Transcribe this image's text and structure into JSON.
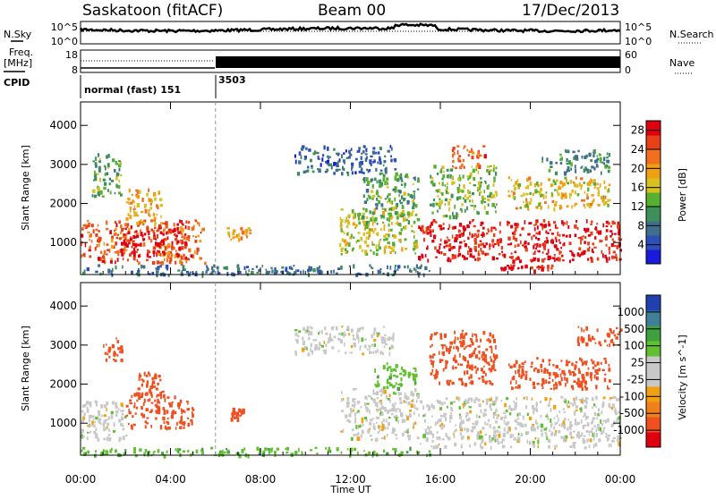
{
  "header": {
    "station": "Saskatoon (fitACF)",
    "beam": "Beam 00",
    "date": "17/Dec/2013"
  },
  "strip": {
    "nsky_label": "N.Sky",
    "nsearch_label": "N.Search",
    "nsky_ticks": [
      "10^5",
      "10^0"
    ],
    "nsky_ticks_right": [
      "10^5",
      "10^0"
    ],
    "freq_label_1": "Freq.",
    "freq_label_2": "[MHz]",
    "freq_ticks": [
      "18",
      "8"
    ],
    "nave_ticks": [
      "60",
      "0"
    ],
    "nave_label": "Nave",
    "cpid_label": "CPID",
    "cpid_segments": [
      {
        "label": "normal (fast) 151",
        "start_hour": 0
      },
      {
        "label": "3503",
        "start_hour": 6
      }
    ]
  },
  "colors": {
    "power_scale": [
      "#1a1adc",
      "#2d4fb8",
      "#3f6f8a",
      "#3f8f5a",
      "#58b030",
      "#d8c020",
      "#f0a010",
      "#f07020",
      "#e84018",
      "#e00010"
    ],
    "velocity_scale": [
      "#e00010",
      "#f05020",
      "#f08018",
      "#f0a010",
      "#c8c8c8",
      "#c8c8c8",
      "#60c030",
      "#40a040",
      "#3f7f9a",
      "#2040b0"
    ]
  },
  "chart_data": [
    {
      "type": "heatmap",
      "title": "Power",
      "xlabel": "",
      "ylabel": "Slant Range [km]",
      "x_ticks": [
        "00:00",
        "04:00",
        "08:00",
        "12:00",
        "16:00",
        "20:00",
        "00:00"
      ],
      "xlim_hours": [
        0,
        24
      ],
      "y_ticks": [
        1000,
        2000,
        3000,
        4000
      ],
      "ylim": [
        180,
        4600
      ],
      "colorbar_label": "Power [dB]",
      "colorbar_ticks": [
        4,
        8,
        12,
        16,
        20,
        24,
        28
      ],
      "colorbar_range": [
        0,
        30
      ],
      "regions": [
        {
          "t0": 0.0,
          "t1": 5.5,
          "r0": 500,
          "r1": 1600,
          "value": 24
        },
        {
          "t0": 1.8,
          "t1": 4.5,
          "r0": 700,
          "r1": 1400,
          "value": 28
        },
        {
          "t0": 2.0,
          "t1": 3.6,
          "r0": 1500,
          "r1": 2400,
          "value": 20
        },
        {
          "t0": 0.5,
          "t1": 1.8,
          "r0": 2200,
          "r1": 3300,
          "value": 12
        },
        {
          "t0": 0.0,
          "t1": 15.5,
          "r0": 200,
          "r1": 450,
          "value": 8
        },
        {
          "t0": 6.5,
          "t1": 7.5,
          "r0": 1100,
          "r1": 1400,
          "value": 20
        },
        {
          "t0": 9.5,
          "t1": 14.0,
          "r0": 2800,
          "r1": 3500,
          "value": 6
        },
        {
          "t0": 11.5,
          "t1": 15.0,
          "r0": 700,
          "r1": 1900,
          "value": 16
        },
        {
          "t0": 12.5,
          "t1": 15.0,
          "r0": 1500,
          "r1": 2800,
          "value": 12
        },
        {
          "t0": 15.0,
          "t1": 24.0,
          "r0": 550,
          "r1": 1600,
          "value": 28
        },
        {
          "t0": 15.5,
          "t1": 18.5,
          "r0": 1700,
          "r1": 3000,
          "value": 14
        },
        {
          "t0": 16.5,
          "t1": 18.0,
          "r0": 2900,
          "r1": 3500,
          "value": 24
        },
        {
          "t0": 19.0,
          "t1": 23.5,
          "r0": 1900,
          "r1": 2700,
          "value": 18
        },
        {
          "t0": 20.5,
          "t1": 23.5,
          "r0": 2800,
          "r1": 3400,
          "value": 10
        },
        {
          "t0": 18.5,
          "t1": 21.0,
          "r0": 300,
          "r1": 450,
          "value": 28
        }
      ]
    },
    {
      "type": "heatmap",
      "title": "Velocity",
      "xlabel": "Time UT",
      "ylabel": "Slant Range [km]",
      "x_ticks": [
        "00:00",
        "04:00",
        "08:00",
        "12:00",
        "16:00",
        "20:00",
        "00:00"
      ],
      "xlim_hours": [
        0,
        24
      ],
      "y_ticks": [
        1000,
        2000,
        3000,
        4000
      ],
      "ylim": [
        180,
        4600
      ],
      "colorbar_label": "Velocity [m s^-1]",
      "colorbar_ticks": [
        1000,
        500,
        100,
        25,
        -25,
        -100,
        -500,
        -1000
      ],
      "regions": [
        {
          "t0": 0.0,
          "t1": 2.0,
          "r0": 600,
          "r1": 1600,
          "value": 0
        },
        {
          "t0": 2.0,
          "t1": 5.0,
          "r0": 900,
          "r1": 1800,
          "value": -300
        },
        {
          "t0": 2.5,
          "t1": 3.6,
          "r0": 1700,
          "r1": 2400,
          "value": -200
        },
        {
          "t0": 1.0,
          "t1": 1.8,
          "r0": 2600,
          "r1": 3200,
          "value": -200
        },
        {
          "t0": 0.0,
          "t1": 15.5,
          "r0": 200,
          "r1": 400,
          "value": 80
        },
        {
          "t0": 6.5,
          "t1": 7.2,
          "r0": 1100,
          "r1": 1400,
          "value": -300
        },
        {
          "t0": 9.5,
          "t1": 14.0,
          "r0": 2800,
          "r1": 3500,
          "value": 0
        },
        {
          "t0": 11.5,
          "t1": 15.0,
          "r0": 600,
          "r1": 1900,
          "value": 0
        },
        {
          "t0": 13.0,
          "t1": 15.0,
          "r0": 1900,
          "r1": 2600,
          "value": 80
        },
        {
          "t0": 15.0,
          "t1": 24.0,
          "r0": 400,
          "r1": 1700,
          "value": 0
        },
        {
          "t0": 15.5,
          "t1": 18.5,
          "r0": 2000,
          "r1": 3400,
          "value": -300
        },
        {
          "t0": 19.0,
          "t1": 23.5,
          "r0": 1900,
          "r1": 2700,
          "value": -300
        },
        {
          "t0": 22.0,
          "t1": 24.0,
          "r0": 3000,
          "r1": 3500,
          "value": -300
        }
      ]
    }
  ]
}
